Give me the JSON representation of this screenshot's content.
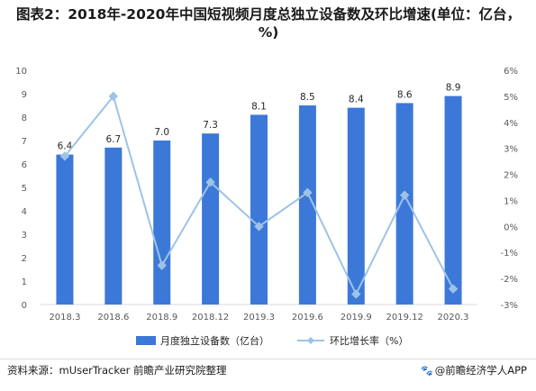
{
  "title": "图表2：2018年-2020年中国短视频月度总独立设备数及环比增速(单位：亿台，%)",
  "source": "资料来源：mUserTracker 前瞻产业研究院整理",
  "brand": "@前瞻经济学人APP",
  "brand_icon": "paw-icon",
  "colors": {
    "bar": "#3c78d8",
    "line": "#9dc3e6",
    "marker": "#9dc3e6",
    "text": "#595959",
    "axis": "#d9d9d9"
  },
  "chart_data": {
    "type": "bar",
    "categories": [
      "2018.3",
      "2018.6",
      "2018.9",
      "2018.12",
      "2019.3",
      "2019.6",
      "2019.9",
      "2019.12",
      "2020.3"
    ],
    "series": [
      {
        "name": "月度独立设备数（亿台）",
        "type": "bar",
        "axis": "left",
        "values": [
          6.4,
          6.7,
          7.0,
          7.3,
          8.1,
          8.5,
          8.4,
          8.6,
          8.9
        ],
        "data_labels": [
          "6.4",
          "6.7",
          "7.0",
          "7.3",
          "8.1",
          "8.5",
          "8.4",
          "8.6",
          "8.9"
        ]
      },
      {
        "name": "环比增长率（%）",
        "type": "line",
        "axis": "right",
        "values": [
          2.7,
          5.0,
          -1.5,
          1.7,
          0.0,
          1.3,
          -2.6,
          1.2,
          -2.4
        ]
      }
    ],
    "y_left": {
      "lim": [
        0,
        10
      ],
      "ticks": [
        "0",
        "1",
        "2",
        "3",
        "4",
        "5",
        "6",
        "7",
        "8",
        "9",
        "10"
      ]
    },
    "y_right": {
      "lim": [
        -3,
        6
      ],
      "ticks": [
        "-3%",
        "-2%",
        "-1%",
        "0%",
        "1%",
        "2%",
        "3%",
        "4%",
        "5%",
        "6%"
      ]
    },
    "grid": false,
    "legend": "bottom"
  }
}
